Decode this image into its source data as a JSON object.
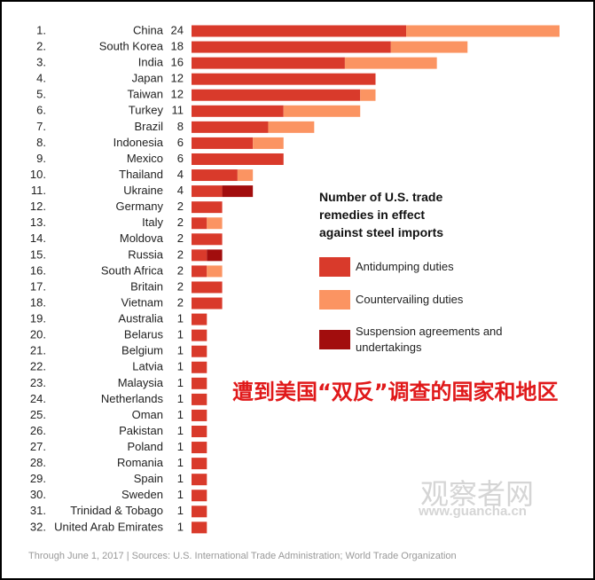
{
  "chart_data": {
    "type": "stacked-barh",
    "legend_title": "Number of U.S. trade remedies in effect against steel imports",
    "ranks": [
      "1.",
      "2.",
      "3.",
      "4.",
      "5.",
      "6.",
      "7.",
      "8.",
      "9.",
      "10.",
      "11.",
      "12.",
      "13.",
      "14.",
      "15.",
      "16.",
      "17.",
      "18.",
      "19.",
      "20.",
      "21.",
      "22.",
      "23.",
      "24.",
      "25.",
      "26.",
      "27.",
      "28.",
      "29.",
      "30.",
      "31.",
      "32."
    ],
    "categories": [
      "China",
      "South Korea",
      "India",
      "Japan",
      "Taiwan",
      "Turkey",
      "Brazil",
      "Indonesia",
      "Mexico",
      "Thailand",
      "Ukraine",
      "Germany",
      "Italy",
      "Moldova",
      "Russia",
      "South Africa",
      "Britain",
      "Vietnam",
      "Australia",
      "Belarus",
      "Belgium",
      "Latvia",
      "Malaysia",
      "Netherlands",
      "Oman",
      "Pakistan",
      "Poland",
      "Romania",
      "Spain",
      "Sweden",
      "Trinidad & Tobago",
      "United Arab Emirates"
    ],
    "totals": [
      24,
      18,
      16,
      12,
      12,
      11,
      8,
      6,
      6,
      4,
      4,
      2,
      2,
      2,
      2,
      2,
      2,
      2,
      1,
      1,
      1,
      1,
      1,
      1,
      1,
      1,
      1,
      1,
      1,
      1,
      1,
      1
    ],
    "series": [
      {
        "name": "Antidumping duties",
        "color": "#d93a2b",
        "values": [
          14,
          13,
          10,
          12,
          11,
          6,
          5,
          4,
          6,
          3,
          2,
          2,
          1,
          2,
          1,
          1,
          2,
          2,
          1,
          1,
          1,
          1,
          1,
          1,
          1,
          1,
          1,
          1,
          1,
          1,
          1,
          1
        ]
      },
      {
        "name": "Countervailing duties",
        "color": "#fb9462",
        "values": [
          10,
          5,
          6,
          0,
          1,
          5,
          3,
          2,
          0,
          1,
          0,
          0,
          1,
          0,
          0,
          1,
          0,
          0,
          0,
          0,
          0,
          0,
          0,
          0,
          0,
          0,
          0,
          0,
          0,
          0,
          0,
          0
        ]
      },
      {
        "name": "Suspension agreements and undertakings",
        "color": "#a20d0d",
        "values": [
          0,
          0,
          0,
          0,
          0,
          0,
          0,
          0,
          0,
          0,
          2,
          0,
          0,
          0,
          1,
          0,
          0,
          0,
          0,
          0,
          0,
          0,
          0,
          0,
          0,
          0,
          0,
          0,
          0,
          0,
          0,
          0
        ]
      }
    ],
    "annotation": "遭到美国“双反”调查的国家和地区",
    "watermark": "观察者网",
    "watermark_url": "www.guancha.cn",
    "source": "Through June 1, 2017 | Sources: U.S. International Trade Administration; World Trade Organization"
  }
}
